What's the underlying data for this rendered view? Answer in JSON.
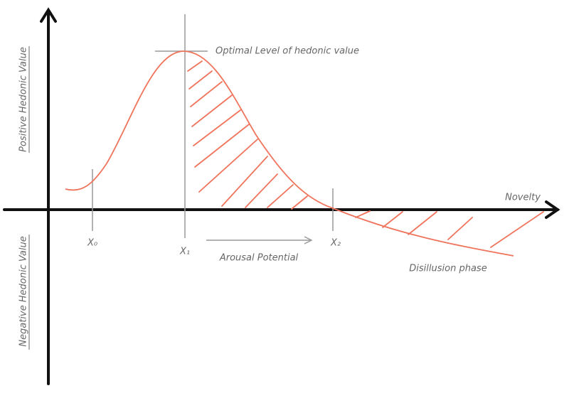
{
  "diagram": {
    "optimal_label": "Optimal Level of hedonic value",
    "y_positive": "Positive Hedonic Value",
    "y_negative": "Negative Hedonic Value",
    "x_axis": "Novelty",
    "x0": "X₀",
    "x1": "X₁",
    "x2": "X₂",
    "arousal": "Arousal Potential",
    "disillusion": "Disillusion phase"
  }
}
